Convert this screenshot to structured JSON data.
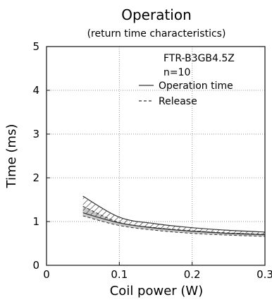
{
  "chart_data": {
    "type": "line",
    "title": "Operation",
    "subtitle": "(return time characteristics)",
    "xlabel": "Coil power (W)",
    "ylabel": "Time (ms)",
    "xlim": [
      0,
      0.3
    ],
    "ylim": [
      0,
      5
    ],
    "x_ticks": [
      0,
      0.1,
      0.2,
      0.3
    ],
    "x_tick_labels": [
      "0",
      "0.1",
      "0.2",
      "0.3"
    ],
    "y_ticks": [
      0,
      1,
      2,
      3,
      4,
      5
    ],
    "y_tick_labels": [
      "0",
      "1",
      "2",
      "3",
      "4",
      "5"
    ],
    "grid": true,
    "annotations": [
      "FTR-B3GB4.5Z",
      "n=10"
    ],
    "legend_position": "top-right",
    "series": [
      {
        "name": "Operation time",
        "style": "solid-hatched-band",
        "x": [
          0.05,
          0.1,
          0.15,
          0.2,
          0.25,
          0.3
        ],
        "upper": [
          1.58,
          1.1,
          0.95,
          0.86,
          0.8,
          0.76
        ],
        "lower": [
          1.2,
          0.97,
          0.85,
          0.78,
          0.73,
          0.7
        ]
      },
      {
        "name": "Release",
        "style": "dashed-shaded-band",
        "x": [
          0.05,
          0.1,
          0.15,
          0.2,
          0.25,
          0.3
        ],
        "upper": [
          1.35,
          0.98,
          0.86,
          0.79,
          0.74,
          0.71
        ],
        "lower": [
          1.13,
          0.91,
          0.8,
          0.73,
          0.69,
          0.66
        ]
      }
    ],
    "colors": {
      "band_fill": "#c8c8c8",
      "line": "#333333",
      "grid": "#999999"
    }
  }
}
